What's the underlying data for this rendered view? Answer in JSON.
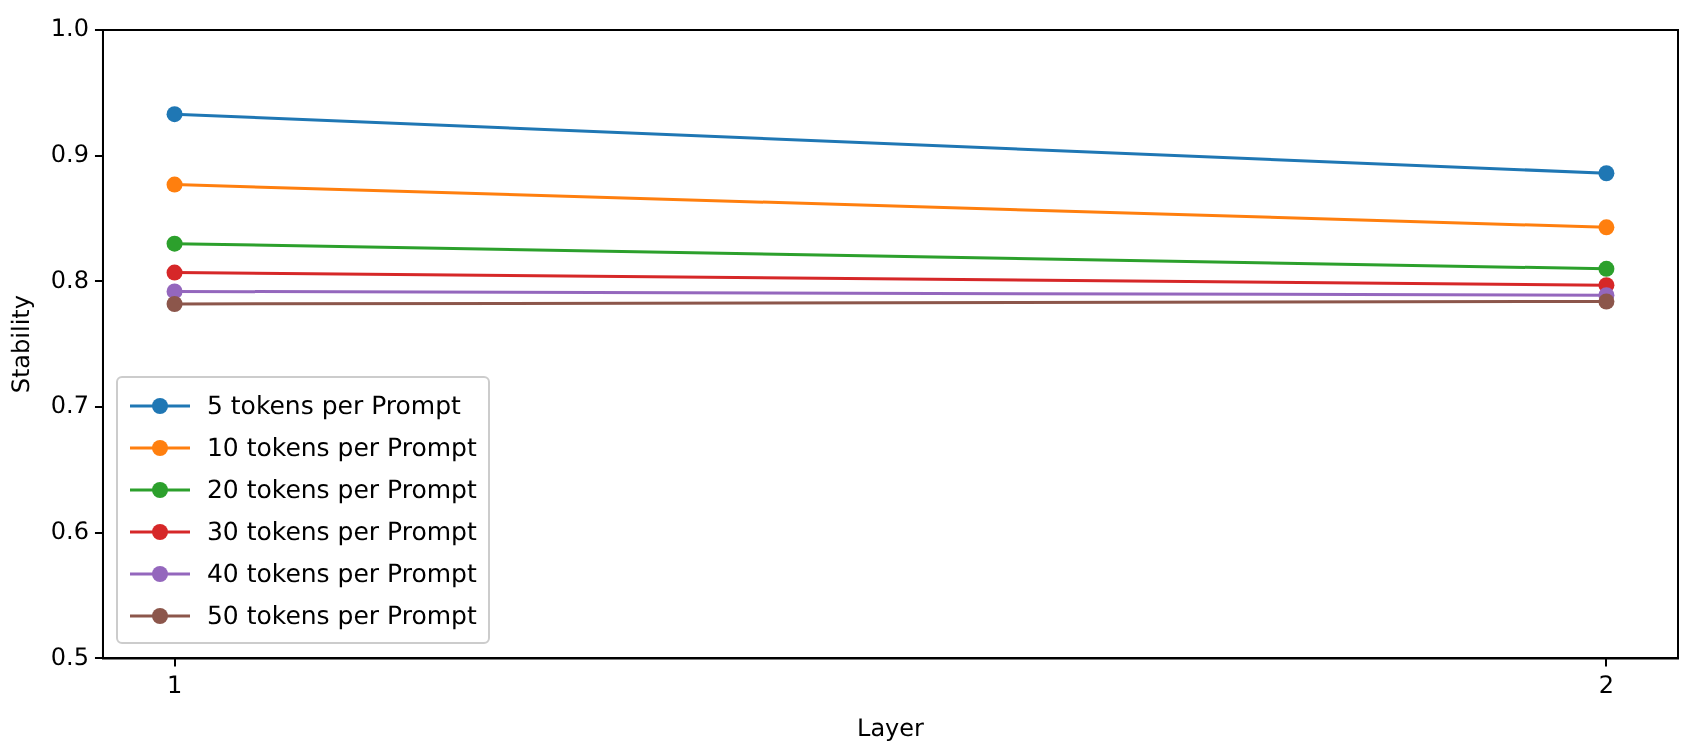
{
  "chart_data": {
    "type": "line",
    "xlabel": "Layer",
    "ylabel": "Stability",
    "x": [
      1,
      2
    ],
    "xlim": [
      0.95,
      2.05
    ],
    "xticks": [
      1,
      2
    ],
    "ylim": [
      0.5,
      1.0
    ],
    "yticks": [
      {
        "value": 0.5,
        "label": "0.5"
      },
      {
        "value": 0.6,
        "label": "0.6"
      },
      {
        "value": 0.7,
        "label": "0.7"
      },
      {
        "value": 0.8,
        "label": "0.8"
      },
      {
        "value": 0.9,
        "label": "0.9"
      },
      {
        "value": 1.0,
        "label": "1.0"
      }
    ],
    "grid": false,
    "legend": "bottom left",
    "marker": "circle",
    "line_style": "solid",
    "series": [
      {
        "name": "5 tokens per Prompt",
        "color": "#1f77b4",
        "values": [
          0.933,
          0.886
        ]
      },
      {
        "name": "10 tokens per Prompt",
        "color": "#ff7f0e",
        "values": [
          0.877,
          0.843
        ]
      },
      {
        "name": "20 tokens per Prompt",
        "color": "#2ca02c",
        "values": [
          0.83,
          0.81
        ]
      },
      {
        "name": "30 tokens per Prompt",
        "color": "#d62728",
        "values": [
          0.807,
          0.797
        ]
      },
      {
        "name": "40 tokens per Prompt",
        "color": "#9467bd",
        "values": [
          0.792,
          0.789
        ]
      },
      {
        "name": "50 tokens per Prompt",
        "color": "#8c564b",
        "values": [
          0.782,
          0.784
        ]
      }
    ]
  }
}
